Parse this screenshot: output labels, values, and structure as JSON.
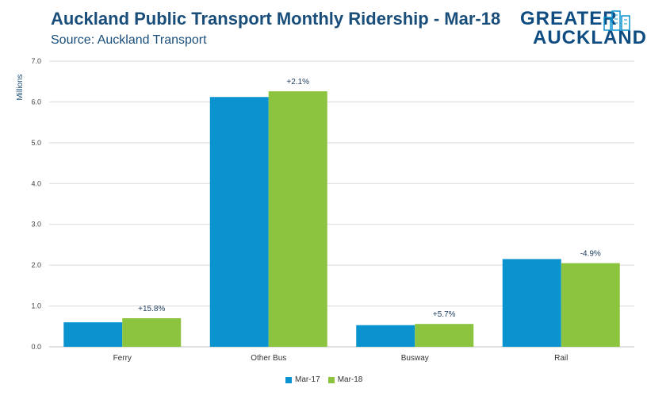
{
  "header": {
    "title": "Auckland Public Transport Monthly Ridership - Mar-18",
    "subtitle": "Source: Auckland Transport"
  },
  "logo": {
    "line1": "GREATER",
    "line2": "AUCKLAND"
  },
  "colors": {
    "mar17": "#0a93cf",
    "mar18": "#8cc43f",
    "grid": "#d9d9d9",
    "title": "#1a4e7a"
  },
  "chart_data": {
    "type": "bar",
    "title": "Auckland Public Transport Monthly Ridership - Mar-18",
    "subtitle": "Source: Auckland Transport",
    "ylabel": "Millions",
    "xlabel": "",
    "ylim": [
      0,
      7
    ],
    "yticks": [
      "0.0",
      "1.0",
      "2.0",
      "3.0",
      "4.0",
      "5.0",
      "6.0",
      "7.0"
    ],
    "grid": true,
    "legend": "bottom",
    "categories": [
      "Ferry",
      "Other Bus",
      "Busway",
      "Rail"
    ],
    "series": [
      {
        "name": "Mar-17",
        "values": [
          0.6,
          6.12,
          0.53,
          2.15
        ]
      },
      {
        "name": "Mar-18",
        "values": [
          0.7,
          6.26,
          0.56,
          2.05
        ]
      }
    ],
    "annotations": [
      "+15.8%",
      "+2.1%",
      "+5.7%",
      "-4.9%"
    ]
  }
}
